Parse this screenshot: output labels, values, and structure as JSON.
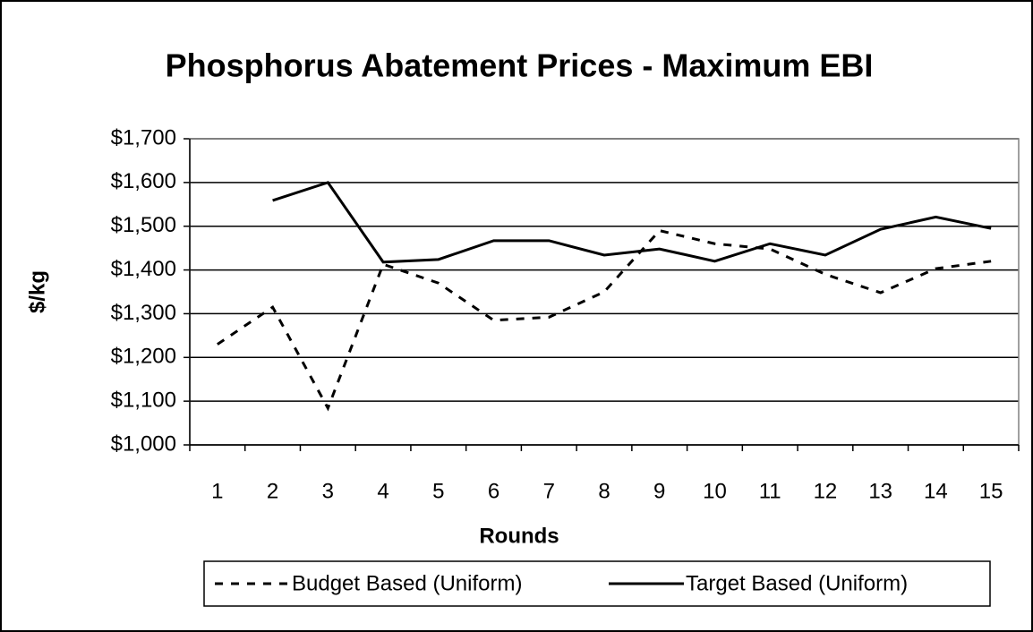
{
  "chart_data": {
    "type": "line",
    "title": "Phosphorus Abatement Prices - Maximum EBI",
    "x_label": "Rounds",
    "y_label": "$/kg",
    "categories": [
      "1",
      "2",
      "3",
      "4",
      "5",
      "6",
      "7",
      "8",
      "9",
      "10",
      "11",
      "12",
      "13",
      "14",
      "15"
    ],
    "series": [
      {
        "name": "Budget Based (Uniform)",
        "color": "#000000",
        "dash": true,
        "values": [
          1230,
          1315,
          1084,
          1413,
          1370,
          1285,
          1292,
          1350,
          1490,
          1460,
          1448,
          1390,
          1348,
          1403,
          1420
        ]
      },
      {
        "name": "Target Based (Uniform)",
        "color": "#000000",
        "dash": false,
        "values": [
          null,
          1559,
          1600,
          1418,
          1424,
          1467,
          1467,
          1434,
          1448,
          1420,
          1460,
          1434,
          1493,
          1521,
          1495
        ]
      }
    ],
    "ylim": [
      1000,
      1700
    ],
    "yticks": [
      {
        "value": 1000,
        "label": "$1,000"
      },
      {
        "value": 1100,
        "label": "$1,100"
      },
      {
        "value": 1200,
        "label": "$1,200"
      },
      {
        "value": 1300,
        "label": "$1,300"
      },
      {
        "value": 1400,
        "label": "$1,400"
      },
      {
        "value": 1500,
        "label": "$1,500"
      },
      {
        "value": 1600,
        "label": "$1,600"
      },
      {
        "value": 1700,
        "label": "$1,700"
      }
    ],
    "grid": true,
    "legend": "bottom"
  }
}
